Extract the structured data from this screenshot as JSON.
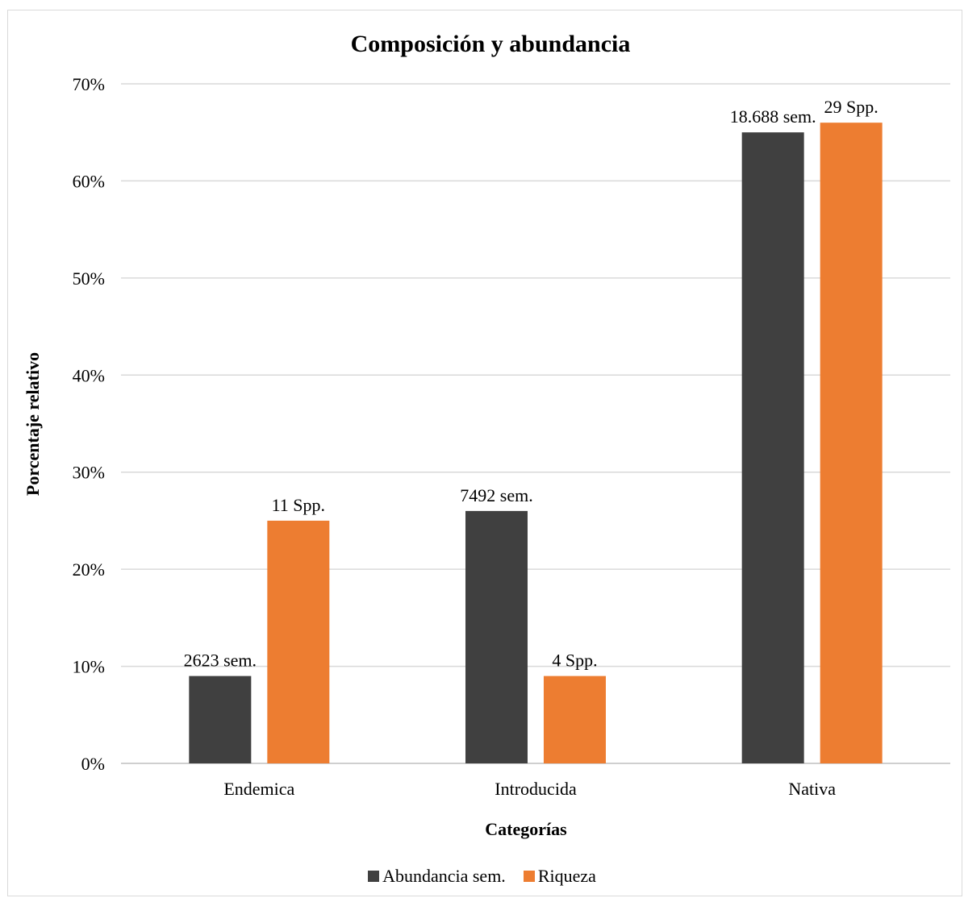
{
  "chart_data": {
    "type": "bar",
    "title": "Composición y abundancia",
    "xlabel": "Categorías",
    "ylabel": "Porcentaje relativo",
    "categories": [
      "Endemica",
      "Introducida",
      "Nativa"
    ],
    "ylim": [
      0,
      0.7
    ],
    "yticks": [
      "0%",
      "10%",
      "20%",
      "30%",
      "40%",
      "50%",
      "60%",
      "70%"
    ],
    "grid": true,
    "legend_position": "bottom",
    "series": [
      {
        "name": "Abundancia sem.",
        "color": "#404040",
        "values": [
          0.09,
          0.26,
          0.65
        ],
        "labels": [
          "2623 sem.",
          "7492 sem.",
          "18.688 sem."
        ]
      },
      {
        "name": "Riqueza",
        "color": "#ed7d31",
        "values": [
          0.25,
          0.09,
          0.66
        ],
        "labels": [
          "11 Spp.",
          "4 Spp.",
          "29 Spp."
        ]
      }
    ]
  }
}
